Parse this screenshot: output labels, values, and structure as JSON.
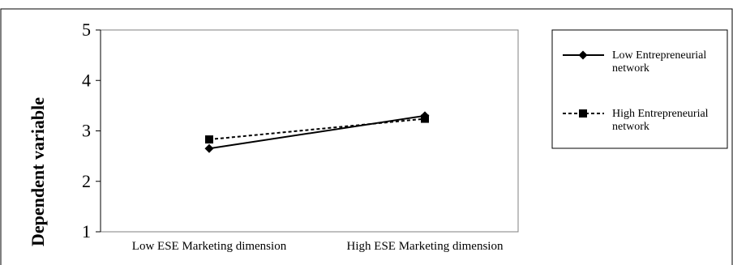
{
  "chart_data": {
    "type": "line",
    "categories": [
      "Low ESE Marketing dimension",
      "High ESE Marketing dimension"
    ],
    "series": [
      {
        "name": "Low Entrepreneurial network",
        "values": [
          2.65,
          3.3
        ],
        "line_style": "solid",
        "marker": "diamond",
        "color": "#000000"
      },
      {
        "name": "High Entrepreneurial network",
        "values": [
          2.83,
          3.24
        ],
        "line_style": "dashed",
        "marker": "square",
        "color": "#000000"
      }
    ],
    "title": "",
    "xlabel": "",
    "ylabel": "Dependent variable",
    "ylim": [
      1,
      5
    ],
    "yticks": [
      1,
      2,
      3,
      4,
      5
    ],
    "grid": false,
    "legend_position": "right"
  }
}
